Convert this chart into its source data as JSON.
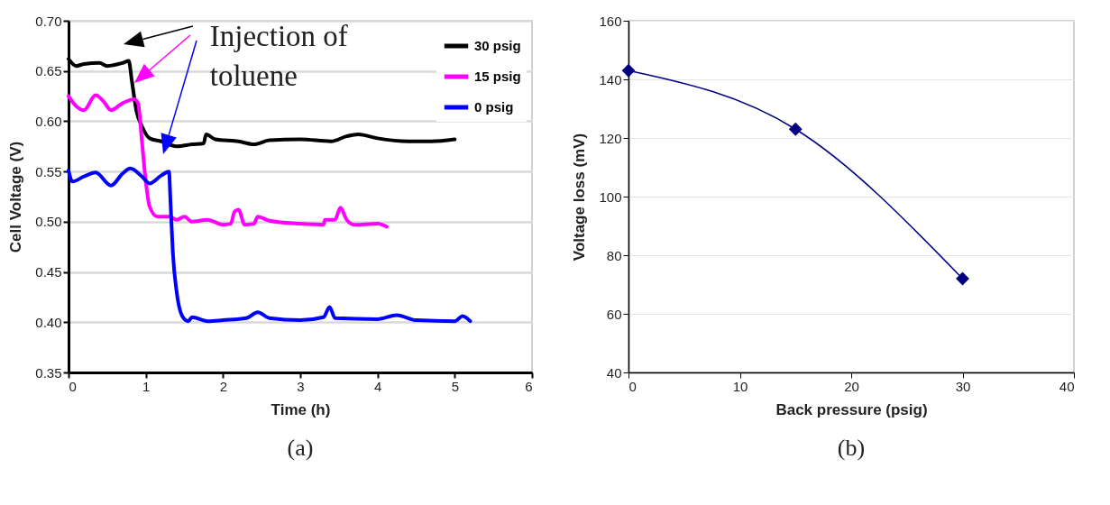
{
  "chart_data": [
    {
      "type": "line",
      "title": "(a)",
      "xlabel": "Time (h)",
      "ylabel": "Cell Voltage (V)",
      "xlim": [
        0,
        6
      ],
      "xticks": [
        0,
        1,
        2,
        3,
        4,
        5,
        6
      ],
      "ylim": [
        0.35,
        0.7
      ],
      "yticks": [
        0.35,
        {
          "value": 0.4,
          "label": "0.40"
        },
        0.45,
        {
          "value": 0.5,
          "label": "0.50"
        },
        0.55,
        {
          "value": 0.6,
          "label": "0.60"
        },
        0.65,
        {
          "value": 0.7,
          "label": "0.70"
        }
      ],
      "grid": "y",
      "legend": "top right",
      "annotations": [
        "Injection of\ntoluene"
      ],
      "series": [
        {
          "name": "30 psig",
          "color": "#000000",
          "x": [
            0,
            0.1,
            0.2,
            0.4,
            0.5,
            0.7,
            0.78,
            0.82,
            0.88,
            0.95,
            1.05,
            1.2,
            1.4,
            1.6,
            1.75,
            1.78,
            1.9,
            2.2,
            2.4,
            2.6,
            3,
            3.4,
            3.6,
            3.75,
            4,
            4.4,
            4.7,
            5
          ],
          "values": [
            0.662,
            0.655,
            0.657,
            0.658,
            0.655,
            0.658,
            0.66,
            0.64,
            0.61,
            0.595,
            0.583,
            0.58,
            0.575,
            0.577,
            0.578,
            0.587,
            0.582,
            0.58,
            0.577,
            0.581,
            0.582,
            0.58,
            0.585,
            0.587,
            0.583,
            0.58,
            0.58,
            0.582
          ]
        },
        {
          "name": "15 psig",
          "color": "#ff00ff",
          "x": [
            0,
            0.1,
            0.2,
            0.35,
            0.45,
            0.55,
            0.7,
            0.85,
            0.9,
            0.95,
            1,
            1.05,
            1.15,
            1.3,
            1.4,
            1.5,
            1.6,
            1.8,
            2,
            2.1,
            2.15,
            2.2,
            2.28,
            2.4,
            2.45,
            2.6,
            3,
            3.3,
            3.32,
            3.45,
            3.52,
            3.6,
            3.7,
            4,
            4.12
          ],
          "values": [
            0.625,
            0.615,
            0.611,
            0.626,
            0.62,
            0.611,
            0.618,
            0.622,
            0.618,
            0.58,
            0.54,
            0.515,
            0.505,
            0.505,
            0.502,
            0.505,
            0.5,
            0.502,
            0.497,
            0.498,
            0.51,
            0.512,
            0.497,
            0.498,
            0.505,
            0.501,
            0.498,
            0.497,
            0.502,
            0.502,
            0.514,
            0.502,
            0.497,
            0.498,
            0.495
          ]
        },
        {
          "name": "0 psig",
          "color": "#0000ff",
          "x": [
            0,
            0.05,
            0.2,
            0.35,
            0.55,
            0.7,
            0.8,
            0.95,
            1.05,
            1.2,
            1.3,
            1.32,
            1.35,
            1.4,
            1.48,
            1.55,
            1.6,
            1.8,
            2,
            2.3,
            2.45,
            2.6,
            3,
            3.3,
            3.38,
            3.45,
            4,
            4.25,
            4.5,
            5,
            5.1,
            5.2
          ],
          "values": [
            0.551,
            0.54,
            0.545,
            0.549,
            0.536,
            0.548,
            0.553,
            0.545,
            0.538,
            0.546,
            0.55,
            0.52,
            0.47,
            0.43,
            0.405,
            0.401,
            0.405,
            0.401,
            0.402,
            0.404,
            0.41,
            0.404,
            0.402,
            0.405,
            0.415,
            0.404,
            0.403,
            0.407,
            0.402,
            0.401,
            0.406,
            0.401
          ]
        }
      ]
    },
    {
      "type": "line",
      "title": "(b)",
      "xlabel": "Back pressure (psig)",
      "ylabel": "Voltage loss (mV)",
      "xlim": [
        0,
        40
      ],
      "xticks": [
        0,
        10,
        20,
        30,
        40
      ],
      "ylim": [
        40,
        160
      ],
      "yticks": [
        40,
        60,
        80,
        100,
        120,
        140,
        160
      ],
      "grid": "y",
      "marker": "diamond",
      "series": [
        {
          "color": "#000080",
          "x": [
            0,
            15,
            30
          ],
          "values": [
            143,
            123,
            72
          ]
        }
      ]
    }
  ]
}
